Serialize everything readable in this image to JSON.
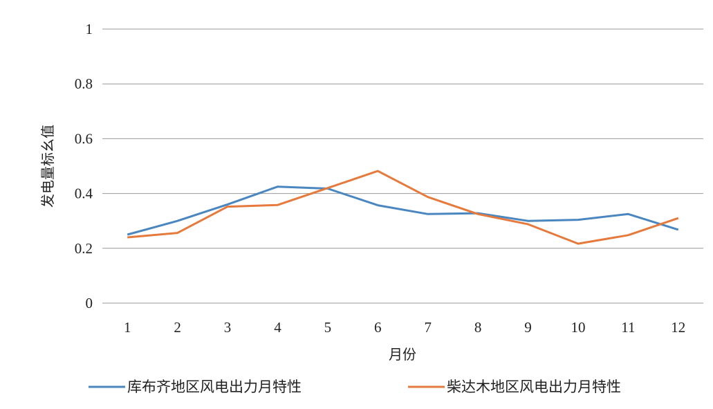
{
  "chart_data": {
    "type": "line",
    "title": "",
    "xlabel": "月份",
    "ylabel": "发电量标幺值",
    "categories": [
      "1",
      "2",
      "3",
      "4",
      "5",
      "6",
      "7",
      "8",
      "9",
      "10",
      "11",
      "12"
    ],
    "y_ticks": [
      "0",
      "0.2",
      "0.4",
      "0.6",
      "0.8",
      "1"
    ],
    "ylim": [
      0,
      1
    ],
    "grid": true,
    "legend_position": "bottom",
    "series": [
      {
        "name": "库布齐地区风电出力月特性",
        "color": "#4a86c0",
        "values": [
          0.25,
          0.3,
          0.36,
          0.425,
          0.418,
          0.357,
          0.325,
          0.328,
          0.3,
          0.304,
          0.325,
          0.268
        ]
      },
      {
        "name": "柴达木地区风电出力月特性",
        "color": "#e67a3c",
        "values": [
          0.24,
          0.256,
          0.352,
          0.358,
          0.42,
          0.482,
          0.387,
          0.325,
          0.288,
          0.217,
          0.248,
          0.31
        ]
      }
    ]
  }
}
